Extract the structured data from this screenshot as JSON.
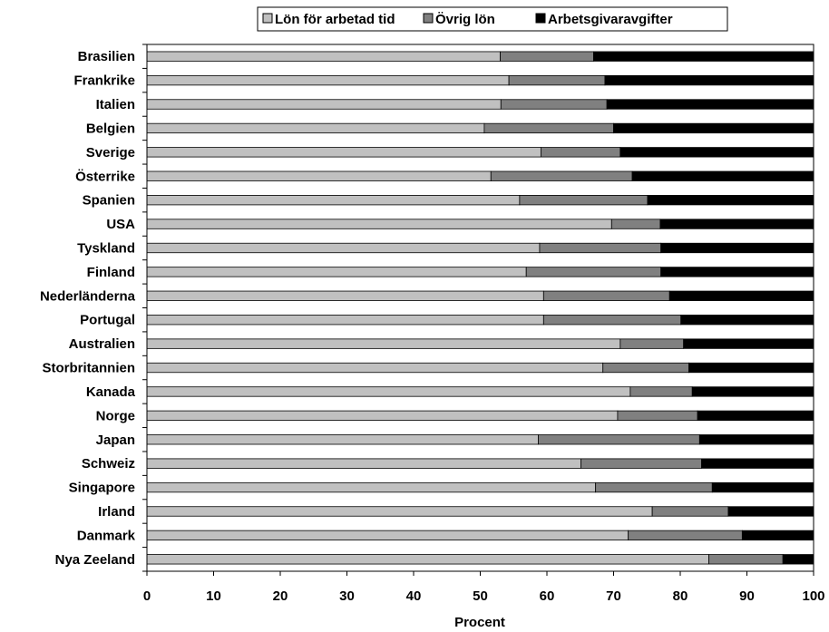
{
  "chart_data": {
    "type": "bar",
    "orientation": "horizontal",
    "stacked": true,
    "xlabel": "Procent",
    "xlim": [
      0,
      100
    ],
    "xticks": [
      "0",
      "10",
      "20",
      "30",
      "40",
      "50",
      "60",
      "70",
      "80",
      "90",
      "100"
    ],
    "grid": false,
    "legend_position": "top",
    "categories": [
      "Brasilien",
      "Frankrike",
      "Italien",
      "Belgien",
      "Sverige",
      "Österrike",
      "Spanien",
      "USA",
      "Tyskland",
      "Finland",
      "Nederländerna",
      "Portugal",
      "Australien",
      "Storbritannien",
      "Kanada",
      "Norge",
      "Japan",
      "Schweiz",
      "Singapore",
      "Irland",
      "Danmark",
      "Nya Zeeland"
    ],
    "series": [
      {
        "name": "Lön för arbetad tid",
        "color": "#c0c0c0",
        "values": [
          53.0,
          54.3,
          53.1,
          50.6,
          59.1,
          51.6,
          55.9,
          69.7,
          58.9,
          56.9,
          59.5,
          59.5,
          71.0,
          68.4,
          72.5,
          70.6,
          58.7,
          65.1,
          67.3,
          75.8,
          72.2,
          84.3
        ]
      },
      {
        "name": "Övrig lön",
        "color": "#808080",
        "values": [
          14.0,
          14.4,
          15.9,
          19.4,
          11.9,
          21.2,
          19.2,
          7.3,
          18.2,
          20.2,
          18.9,
          20.6,
          9.5,
          12.9,
          9.3,
          12.0,
          24.2,
          18.1,
          17.5,
          11.4,
          17.1,
          11.1
        ]
      },
      {
        "name": "Arbetsgivaravgifter",
        "color": "#000000",
        "values": [
          33.0,
          31.3,
          31.0,
          30.0,
          29.0,
          27.2,
          24.9,
          23.0,
          22.9,
          22.9,
          21.6,
          19.9,
          19.5,
          18.7,
          18.2,
          17.4,
          17.1,
          16.8,
          15.2,
          12.8,
          10.7,
          4.6
        ]
      }
    ]
  }
}
